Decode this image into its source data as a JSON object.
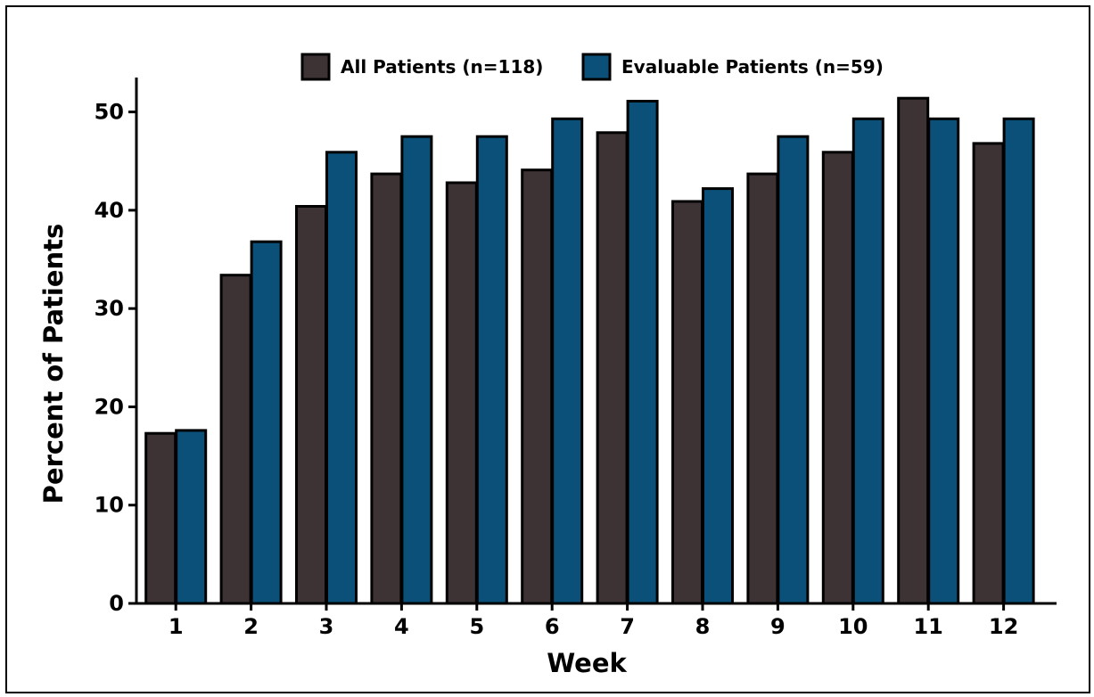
{
  "chart_data": {
    "type": "bar",
    "title": "",
    "xlabel": "Week",
    "ylabel": "Percent of Patients",
    "categories": [
      "1",
      "2",
      "3",
      "4",
      "5",
      "6",
      "7",
      "8",
      "9",
      "10",
      "11",
      "12"
    ],
    "series": [
      {
        "name": "All Patients (n=118)",
        "color": "#3d3234",
        "values": [
          17.3,
          33.4,
          40.4,
          43.7,
          42.8,
          44.1,
          47.9,
          40.9,
          43.7,
          45.9,
          51.4,
          46.8
        ]
      },
      {
        "name": "Evaluable Patients (n=59)",
        "color": "#0a5079",
        "values": [
          17.6,
          36.8,
          45.9,
          47.5,
          47.5,
          49.3,
          51.1,
          42.2,
          47.5,
          49.3,
          49.3,
          49.3
        ]
      }
    ],
    "yticks": [
      0,
      10,
      20,
      30,
      40,
      50
    ],
    "ylim": [
      0,
      53.5
    ],
    "grid": false,
    "legend": "top-center"
  }
}
